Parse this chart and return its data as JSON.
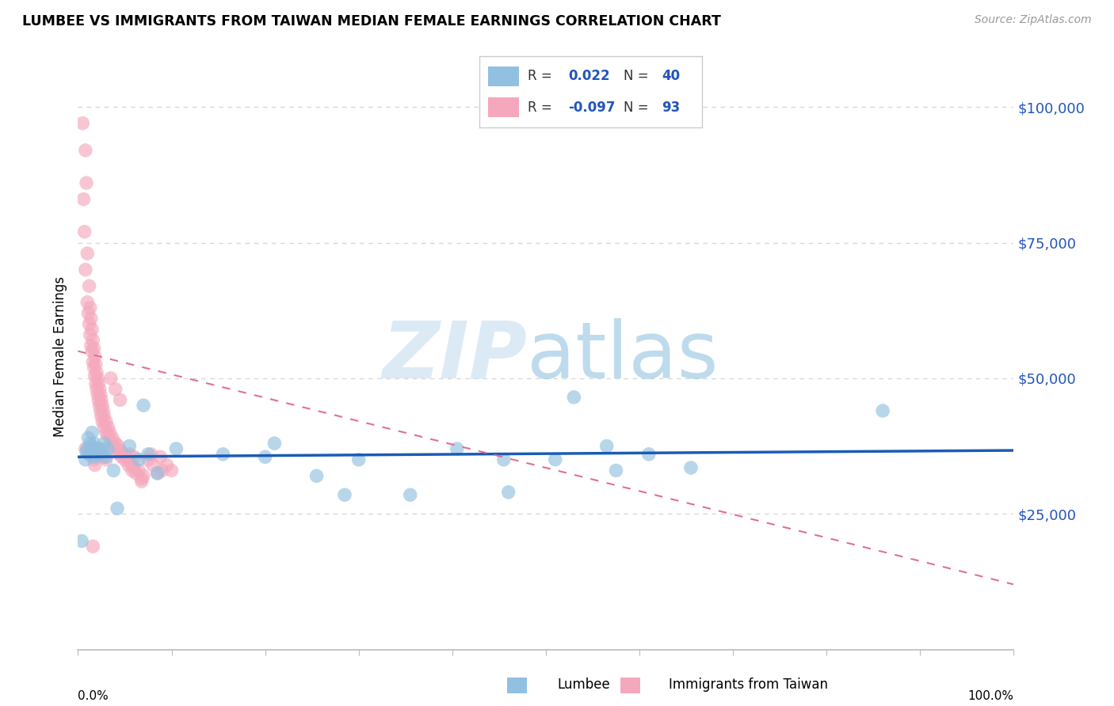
{
  "title": "LUMBEE VS IMMIGRANTS FROM TAIWAN MEDIAN FEMALE EARNINGS CORRELATION CHART",
  "source": "Source: ZipAtlas.com",
  "ylabel": "Median Female Earnings",
  "ytick_labels": [
    "$25,000",
    "$50,000",
    "$75,000",
    "$100,000"
  ],
  "ytick_values": [
    25000,
    50000,
    75000,
    100000
  ],
  "xmin": 0.0,
  "xmax": 1.0,
  "ymin": 0,
  "ymax": 108000,
  "watermark_zip": "ZIP",
  "watermark_atlas": "atlas",
  "blue_color": "#92c0e0",
  "pink_color": "#f5a8bc",
  "trendline_blue_color": "#1a5cb5",
  "trendline_pink_color": "#e07090",
  "blue_scatter": [
    [
      0.004,
      20000
    ],
    [
      0.008,
      35000
    ],
    [
      0.009,
      36500
    ],
    [
      0.01,
      37000
    ],
    [
      0.011,
      39000
    ],
    [
      0.012,
      36000
    ],
    [
      0.013,
      38000
    ],
    [
      0.014,
      36000
    ],
    [
      0.015,
      40000
    ],
    [
      0.016,
      36500
    ],
    [
      0.017,
      38000
    ],
    [
      0.018,
      35500
    ],
    [
      0.019,
      36000
    ],
    [
      0.02,
      37000
    ],
    [
      0.022,
      36000
    ],
    [
      0.024,
      37000
    ],
    [
      0.026,
      36500
    ],
    [
      0.028,
      38000
    ],
    [
      0.03,
      35500
    ],
    [
      0.032,
      37000
    ],
    [
      0.038,
      33000
    ],
    [
      0.042,
      26000
    ],
    [
      0.055,
      37500
    ],
    [
      0.065,
      35000
    ],
    [
      0.07,
      45000
    ],
    [
      0.075,
      36000
    ],
    [
      0.085,
      32500
    ],
    [
      0.105,
      37000
    ],
    [
      0.155,
      36000
    ],
    [
      0.2,
      35500
    ],
    [
      0.21,
      38000
    ],
    [
      0.255,
      32000
    ],
    [
      0.285,
      28500
    ],
    [
      0.3,
      35000
    ],
    [
      0.355,
      28500
    ],
    [
      0.405,
      37000
    ],
    [
      0.46,
      29000
    ],
    [
      0.455,
      35000
    ],
    [
      0.51,
      35000
    ],
    [
      0.53,
      46500
    ],
    [
      0.565,
      37500
    ],
    [
      0.575,
      33000
    ],
    [
      0.61,
      36000
    ],
    [
      0.655,
      33500
    ],
    [
      0.86,
      44000
    ]
  ],
  "pink_scatter": [
    [
      0.005,
      97000
    ],
    [
      0.008,
      92000
    ],
    [
      0.006,
      83000
    ],
    [
      0.009,
      86000
    ],
    [
      0.007,
      77000
    ],
    [
      0.01,
      73000
    ],
    [
      0.008,
      70000
    ],
    [
      0.012,
      67000
    ],
    [
      0.01,
      64000
    ],
    [
      0.011,
      62000
    ],
    [
      0.013,
      63000
    ],
    [
      0.012,
      60000
    ],
    [
      0.014,
      61000
    ],
    [
      0.013,
      58000
    ],
    [
      0.015,
      59000
    ],
    [
      0.014,
      56000
    ],
    [
      0.016,
      57000
    ],
    [
      0.015,
      55000
    ],
    [
      0.017,
      55500
    ],
    [
      0.016,
      53000
    ],
    [
      0.018,
      54000
    ],
    [
      0.017,
      52000
    ],
    [
      0.019,
      52500
    ],
    [
      0.018,
      50500
    ],
    [
      0.02,
      51000
    ],
    [
      0.019,
      49000
    ],
    [
      0.021,
      50000
    ],
    [
      0.02,
      48000
    ],
    [
      0.022,
      49000
    ],
    [
      0.021,
      47000
    ],
    [
      0.023,
      48000
    ],
    [
      0.022,
      46000
    ],
    [
      0.024,
      47000
    ],
    [
      0.023,
      45000
    ],
    [
      0.025,
      46000
    ],
    [
      0.024,
      44000
    ],
    [
      0.026,
      45000
    ],
    [
      0.025,
      43000
    ],
    [
      0.027,
      44000
    ],
    [
      0.026,
      42000
    ],
    [
      0.028,
      43000
    ],
    [
      0.028,
      41000
    ],
    [
      0.03,
      42000
    ],
    [
      0.03,
      40000
    ],
    [
      0.032,
      41000
    ],
    [
      0.032,
      39500
    ],
    [
      0.034,
      40000
    ],
    [
      0.035,
      38500
    ],
    [
      0.037,
      39000
    ],
    [
      0.038,
      37500
    ],
    [
      0.04,
      38000
    ],
    [
      0.041,
      37000
    ],
    [
      0.043,
      37500
    ],
    [
      0.044,
      36000
    ],
    [
      0.046,
      36500
    ],
    [
      0.047,
      35500
    ],
    [
      0.049,
      36000
    ],
    [
      0.05,
      35000
    ],
    [
      0.052,
      35500
    ],
    [
      0.054,
      34000
    ],
    [
      0.056,
      34500
    ],
    [
      0.058,
      33000
    ],
    [
      0.06,
      33500
    ],
    [
      0.062,
      32500
    ],
    [
      0.065,
      33000
    ],
    [
      0.068,
      31500
    ],
    [
      0.07,
      32000
    ],
    [
      0.075,
      35000
    ],
    [
      0.08,
      34000
    ],
    [
      0.085,
      32500
    ],
    [
      0.09,
      33000
    ],
    [
      0.095,
      34000
    ],
    [
      0.1,
      33000
    ],
    [
      0.035,
      50000
    ],
    [
      0.04,
      48000
    ],
    [
      0.045,
      46000
    ],
    [
      0.055,
      36000
    ],
    [
      0.016,
      19000
    ],
    [
      0.06,
      35500
    ],
    [
      0.068,
      31000
    ],
    [
      0.078,
      36000
    ],
    [
      0.088,
      35500
    ],
    [
      0.015,
      37000
    ],
    [
      0.025,
      36000
    ],
    [
      0.03,
      35000
    ],
    [
      0.022,
      37000
    ],
    [
      0.018,
      34000
    ],
    [
      0.026,
      35500
    ],
    [
      0.008,
      37000
    ],
    [
      0.012,
      36000
    ],
    [
      0.014,
      37500
    ],
    [
      0.017,
      35000
    ]
  ],
  "blue_trendline_x": [
    0.0,
    1.0
  ],
  "blue_trendline_y": [
    35500,
    36700
  ],
  "pink_trendline_x": [
    0.0,
    1.0
  ],
  "pink_trendline_y": [
    55000,
    12000
  ],
  "grid_color": "#d8d8d8",
  "background_color": "#ffffff",
  "axis_color": "#bbbbbb"
}
